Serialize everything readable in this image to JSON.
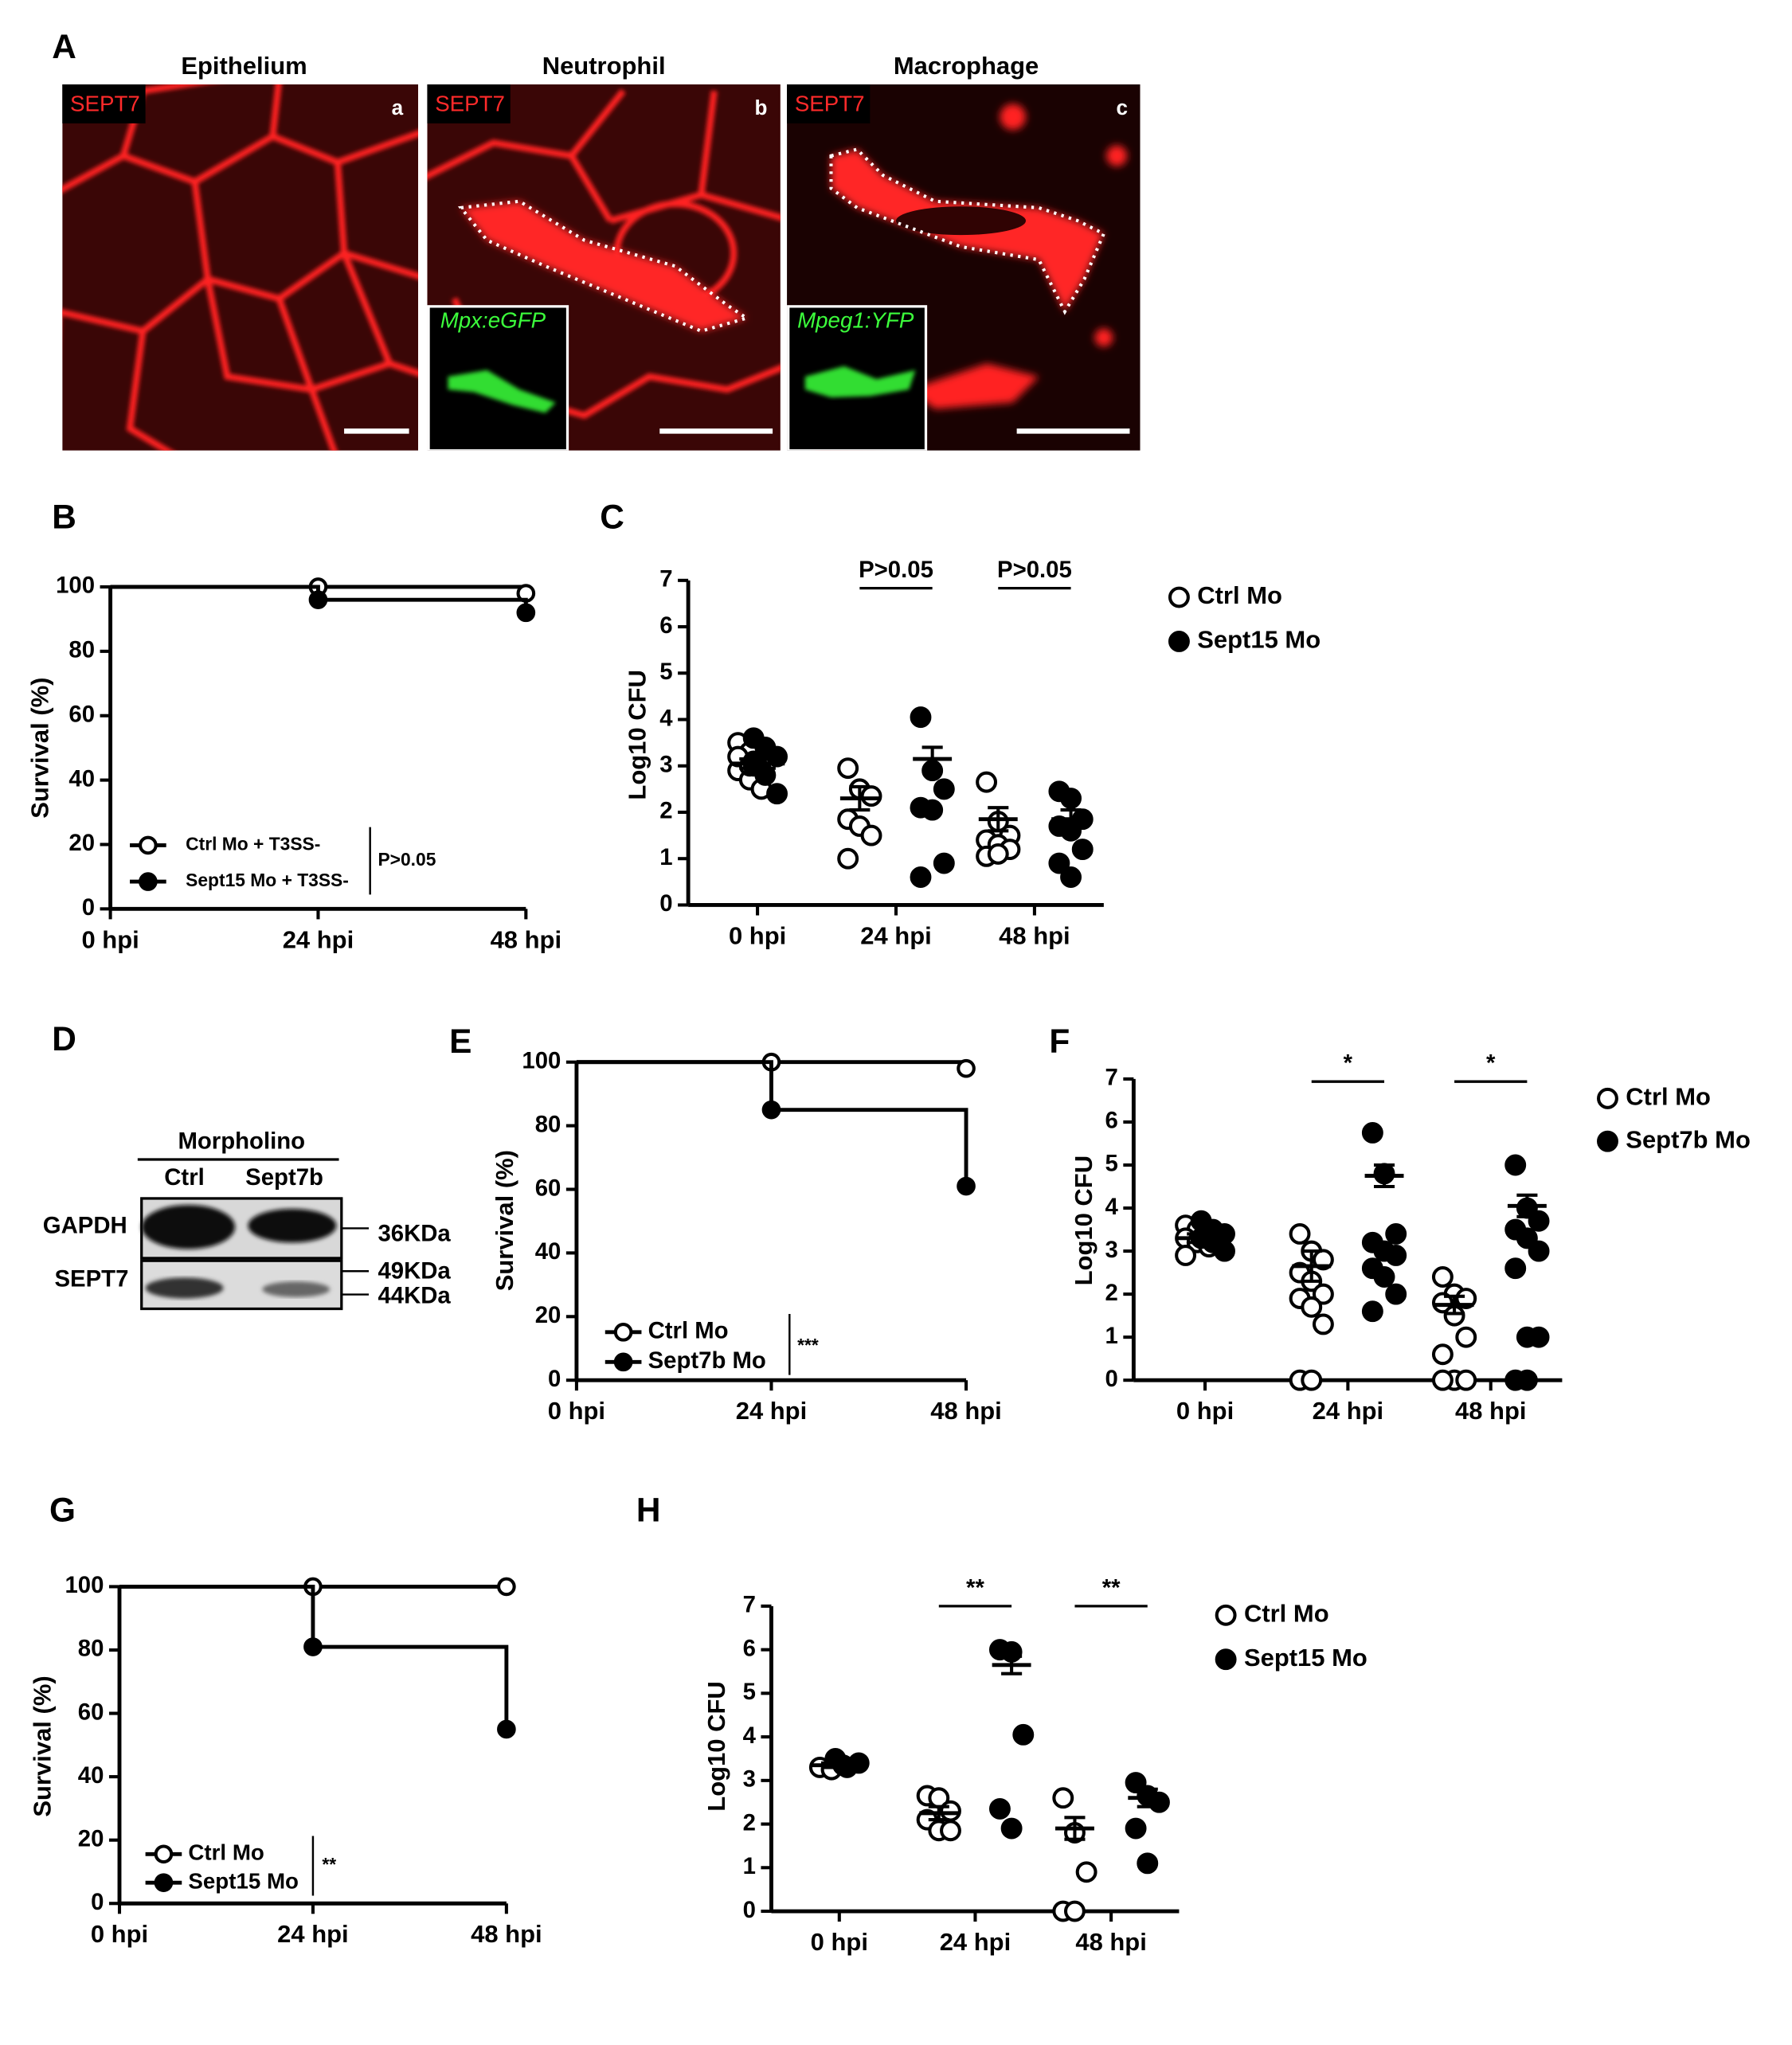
{
  "figure": {
    "panel_a": {
      "label": "A",
      "titles": [
        "Epithelium",
        "Neutrophil",
        "Macrophage"
      ],
      "stain": [
        "SEPT7",
        "SEPT7",
        "SEPT7"
      ],
      "sublabels": [
        "a",
        "b",
        "c"
      ],
      "insets": [
        "Mpx:eGFP",
        "Mpeg1:YFP"
      ]
    },
    "panel_d": {
      "label": "D",
      "header": "Morpholino",
      "lanes": [
        "Ctrl",
        "Sept7b"
      ],
      "rows": [
        "GAPDH",
        "SEPT7"
      ],
      "markers": [
        "36KDa",
        "49KDa",
        "44KDa"
      ]
    }
  },
  "chart_data": [
    {
      "type": "line",
      "step": true,
      "panel_label": "B",
      "y_label": "Survival (%)",
      "categories": [
        "0 hpi",
        "24 hpi",
        "48 hpi"
      ],
      "series": [
        {
          "name": "Ctrl Mo + T3SS-",
          "color": "#000000",
          "marker": "open",
          "values": [
            100,
            100,
            98
          ]
        },
        {
          "name": "Sept15 Mo + T3SS-",
          "color": "#000000",
          "marker": "filled",
          "values": [
            100,
            96,
            92
          ]
        }
      ],
      "ylim": [
        0,
        100
      ],
      "yticks": [
        0,
        20,
        40,
        60,
        80,
        100
      ],
      "legend": "lower left",
      "stat_label": "P>0.05"
    },
    {
      "type": "scatter",
      "panel_label": "C",
      "y_label": "Log10 CFU",
      "categories": [
        "0 hpi",
        "24 hpi",
        "48 hpi"
      ],
      "series": [
        {
          "name": "Ctrl Mo",
          "color": "#000000",
          "marker": "open",
          "values": [
            [
              3.5,
              3.3,
              3.1,
              2.9,
              2.7,
              2.5,
              3.2,
              3.0
            ],
            [
              2.95,
              2.5,
              2.35,
              1.85,
              1.7,
              1.5,
              1.0
            ],
            [
              2.65,
              1.8,
              1.5,
              1.4,
              1.3,
              1.2,
              1.05,
              1.1
            ]
          ],
          "mean": [
            3.05,
            2.3,
            1.85
          ],
          "sem": [
            0.1,
            0.25,
            0.25
          ]
        },
        {
          "name": "Sept15 Mo",
          "color": "#000000",
          "marker": "filled",
          "values": [
            [
              3.6,
              3.4,
              3.2,
              3.0,
              2.8,
              2.4,
              3.1
            ],
            [
              4.05,
              2.9,
              2.5,
              2.1,
              2.05,
              0.9,
              0.6
            ],
            [
              2.45,
              2.3,
              1.85,
              1.7,
              1.6,
              1.2,
              0.9,
              0.6
            ]
          ],
          "mean": [
            3.05,
            3.15,
            1.85
          ],
          "sem": [
            0.1,
            0.25,
            0.2
          ]
        }
      ],
      "significance_labels": [
        null,
        "P>0.05",
        "P>0.05"
      ],
      "ylim": [
        0,
        7
      ],
      "yticks": [
        0,
        1,
        2,
        3,
        4,
        5,
        6,
        7
      ],
      "legend": "outside right"
    },
    {
      "type": "line",
      "step": true,
      "panel_label": "E",
      "y_label": "Survival (%)",
      "categories": [
        "0 hpi",
        "24 hpi",
        "48 hpi"
      ],
      "series": [
        {
          "name": "Ctrl Mo",
          "color": "#000000",
          "marker": "open",
          "values": [
            100,
            100,
            98
          ]
        },
        {
          "name": "Sept7b Mo",
          "color": "#000000",
          "marker": "filled",
          "values": [
            100,
            85,
            61
          ]
        }
      ],
      "ylim": [
        0,
        100
      ],
      "yticks": [
        0,
        20,
        40,
        60,
        80,
        100
      ],
      "legend": "lower left",
      "stat_label": "***"
    },
    {
      "type": "scatter",
      "panel_label": "F",
      "y_label": "Log10 CFU",
      "categories": [
        "0 hpi",
        "24 hpi",
        "48 hpi"
      ],
      "series": [
        {
          "name": "Ctrl Mo",
          "color": "#000000",
          "marker": "open",
          "values": [
            [
              3.6,
              3.5,
              3.4,
              3.3,
              3.2,
              3.1,
              2.9
            ],
            [
              3.4,
              3.0,
              2.8,
              2.5,
              2.3,
              2.0,
              1.9,
              1.7,
              1.3,
              0,
              0
            ],
            [
              2.4,
              2.0,
              1.9,
              1.8,
              1.5,
              1.0,
              0.6,
              0,
              0,
              0
            ]
          ],
          "mean": [
            3.3,
            2.65,
            1.75
          ],
          "sem": [
            0.1,
            0.35,
            0.2
          ]
        },
        {
          "name": "Sept7b Mo",
          "color": "#000000",
          "marker": "filled",
          "values": [
            [
              3.7,
              3.5,
              3.4,
              3.3,
              3.2,
              3.0
            ],
            [
              5.75,
              4.8,
              3.4,
              3.2,
              3.0,
              2.9,
              2.6,
              2.4,
              2.0,
              1.6
            ],
            [
              5.0,
              4.0,
              3.7,
              3.5,
              3.3,
              3.0,
              2.6,
              1.0,
              1.0,
              0,
              0
            ]
          ],
          "mean": [
            3.3,
            4.75,
            4.05
          ],
          "sem": [
            0.1,
            0.25,
            0.25
          ]
        }
      ],
      "significance_labels": [
        null,
        "*",
        "*"
      ],
      "ylim": [
        0,
        7
      ],
      "yticks": [
        0,
        1,
        2,
        3,
        4,
        5,
        6,
        7
      ],
      "legend": "outside right"
    },
    {
      "type": "line",
      "step": true,
      "panel_label": "G",
      "y_label": "Survival (%)",
      "categories": [
        "0 hpi",
        "24 hpi",
        "48 hpi"
      ],
      "series": [
        {
          "name": "Ctrl Mo",
          "color": "#000000",
          "marker": "open",
          "values": [
            100,
            100,
            100
          ]
        },
        {
          "name": "Sept15 Mo",
          "color": "#000000",
          "marker": "filled",
          "values": [
            100,
            81,
            55
          ]
        }
      ],
      "ylim": [
        0,
        100
      ],
      "yticks": [
        0,
        20,
        40,
        60,
        80,
        100
      ],
      "legend": "lower left",
      "stat_label": "**"
    },
    {
      "type": "scatter",
      "panel_label": "H",
      "y_label": "Log10 CFU",
      "categories": [
        "0 hpi",
        "24 hpi",
        "48 hpi"
      ],
      "series": [
        {
          "name": "Ctrl Mo",
          "color": "#000000",
          "marker": "open",
          "values": [
            [
              3.3,
              3.25,
              3.35
            ],
            [
              2.65,
              2.6,
              2.3,
              2.1,
              1.85,
              1.85
            ],
            [
              2.6,
              1.8,
              0.9,
              0,
              0
            ]
          ],
          "mean": [
            3.35,
            2.25,
            1.9
          ],
          "sem": [
            0.05,
            0.15,
            0.25
          ]
        },
        {
          "name": "Sept15 Mo",
          "color": "#000000",
          "marker": "filled",
          "values": [
            [
              3.5,
              3.3,
              3.4
            ],
            [
              6.0,
              5.95,
              4.05,
              2.35,
              1.9
            ],
            [
              2.95,
              2.65,
              2.5,
              1.9,
              1.1
            ]
          ],
          "mean": [
            3.35,
            5.65,
            2.6
          ],
          "sem": [
            0.05,
            0.2,
            0.2
          ]
        }
      ],
      "significance_labels": [
        null,
        "**",
        "**"
      ],
      "ylim": [
        0,
        7
      ],
      "yticks": [
        0,
        1,
        2,
        3,
        4,
        5,
        6,
        7
      ],
      "legend": "outside right"
    }
  ]
}
